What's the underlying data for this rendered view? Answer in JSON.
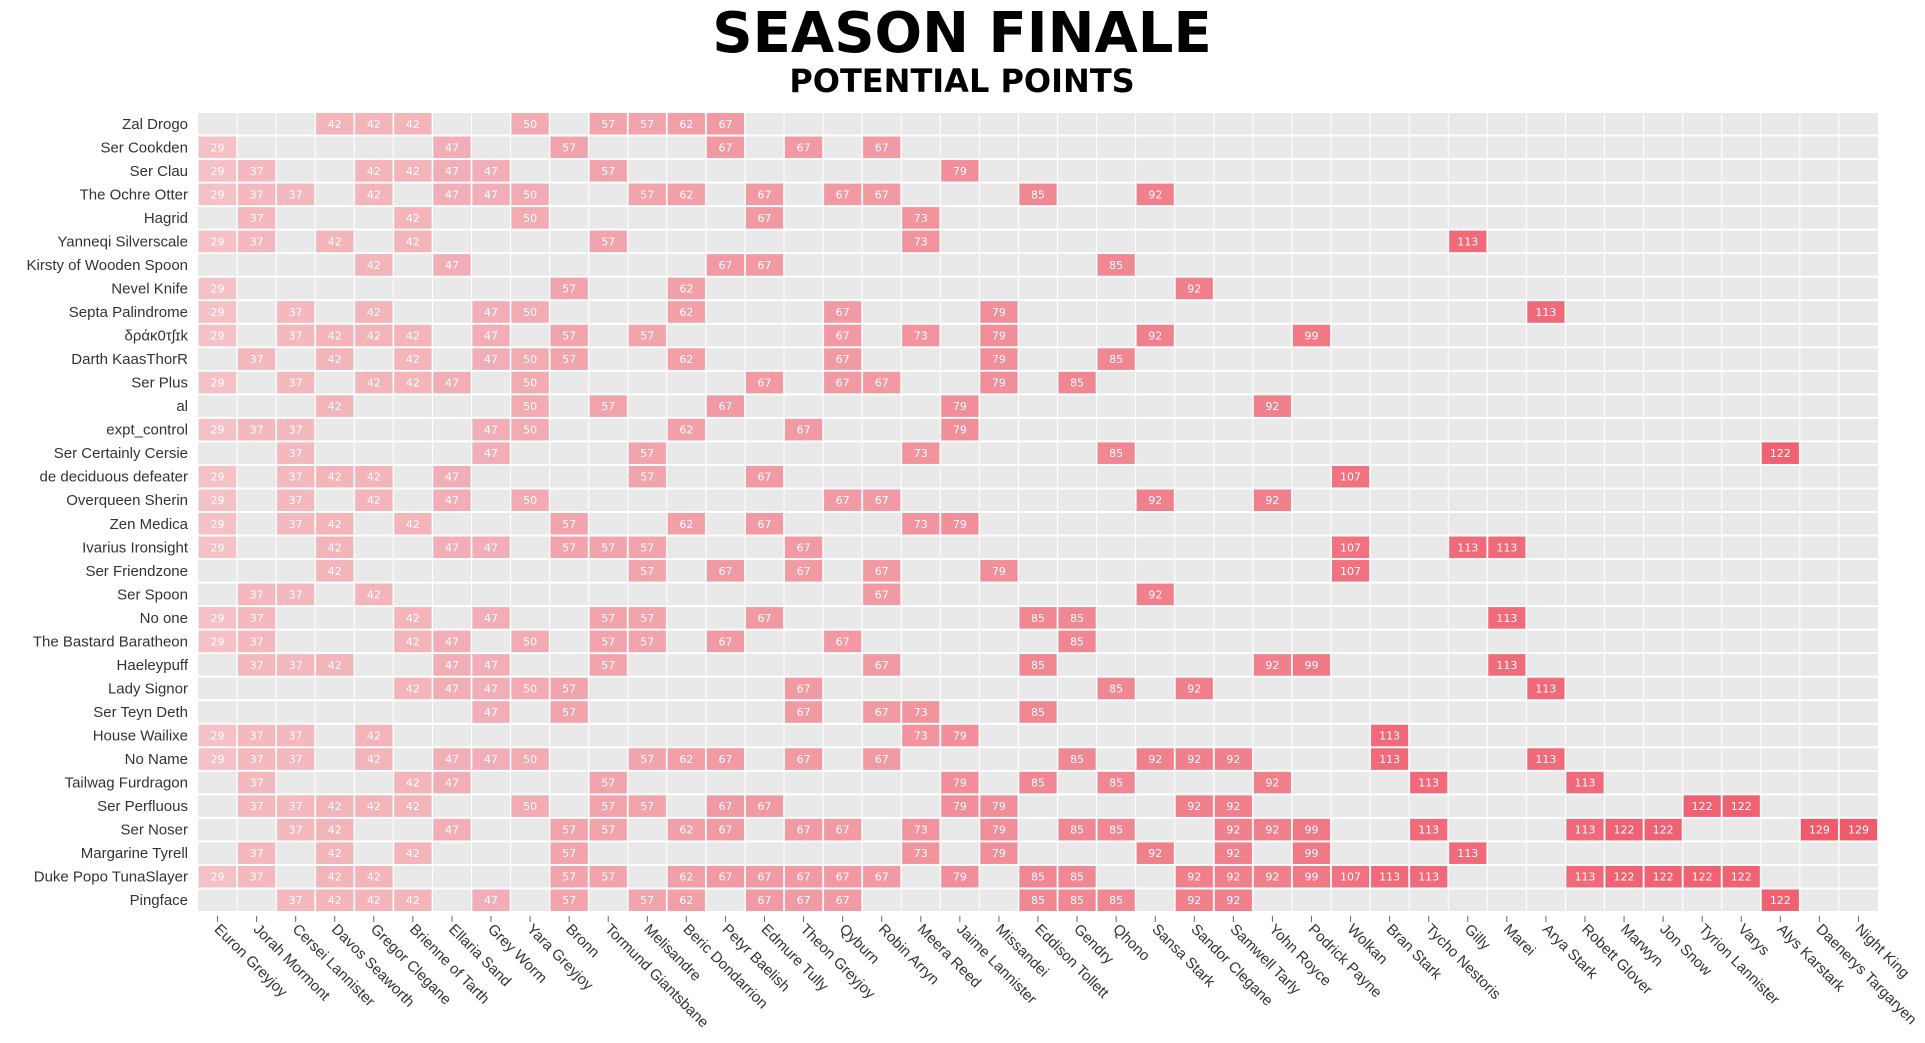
{
  "chart_data": {
    "type": "heatmap",
    "title": "SEASON FINALE",
    "subtitle": "POTENTIAL POINTS",
    "xlabel": "",
    "ylabel": "",
    "columns": [
      "Euron Greyjoy",
      "Jorah Mormont",
      "Cersei Lannister",
      "Davos Seaworth",
      "Gregor Clegane",
      "Brienne of Tarth",
      "Ellaria Sand",
      "Grey Worm",
      "Yara Greyjoy",
      "Bronn",
      "Tormund Giantsbane",
      "Melisandre",
      "Beric Dondarrion",
      "Petyr Baelish",
      "Edmure Tully",
      "Theon Greyjoy",
      "Qyburn",
      "Robin Arryn",
      "Meera Reed",
      "Jaime Lannister",
      "Missandei",
      "Eddison Tollett",
      "Gendry",
      "Qhono",
      "Sansa Stark",
      "Sandor Clegane",
      "Samwell Tarly",
      "Yohn Royce",
      "Podrick Payne",
      "Wolkan",
      "Bran Stark",
      "Tycho Nestoris",
      "Gilly",
      "Marei",
      "Arya Stark",
      "Robett Glover",
      "Marwyn",
      "Jon Snow",
      "Tyrion Lannister",
      "Varys",
      "Alys Karstark",
      "Daenerys Targaryen",
      "Night King"
    ],
    "column_points": [
      29,
      37,
      37,
      42,
      42,
      42,
      47,
      47,
      50,
      57,
      57,
      57,
      62,
      67,
      67,
      67,
      67,
      67,
      73,
      79,
      79,
      85,
      85,
      85,
      92,
      92,
      92,
      92,
      99,
      107,
      113,
      113,
      113,
      113,
      113,
      113,
      122,
      122,
      122,
      122,
      122,
      129,
      129
    ],
    "rows": [
      {
        "name": "Zal Drogo",
        "picks": [
          3,
          4,
          5,
          8,
          10,
          11,
          12,
          13
        ]
      },
      {
        "name": "Ser Cookden",
        "picks": [
          0,
          6,
          9,
          13,
          15,
          17
        ]
      },
      {
        "name": "Ser Clau",
        "picks": [
          0,
          1,
          4,
          5,
          6,
          7,
          10,
          19
        ]
      },
      {
        "name": "The Ochre Otter",
        "picks": [
          0,
          1,
          2,
          4,
          6,
          7,
          8,
          11,
          12,
          14,
          16,
          17,
          21,
          24
        ]
      },
      {
        "name": "Hagrid",
        "picks": [
          1,
          5,
          8,
          14,
          18
        ]
      },
      {
        "name": "Yanneqi Silverscale",
        "picks": [
          0,
          1,
          3,
          5,
          10,
          18,
          32
        ]
      },
      {
        "name": "Kirsty of Wooden Spoon",
        "picks": [
          4,
          6,
          13,
          14,
          23
        ]
      },
      {
        "name": "Nevel Knife",
        "picks": [
          0,
          9,
          12,
          25
        ]
      },
      {
        "name": "Septa Palindrome",
        "picks": [
          0,
          2,
          4,
          7,
          8,
          12,
          16,
          20,
          34
        ]
      },
      {
        "name": "δράκ0τʃɪk",
        "picks": [
          0,
          2,
          3,
          4,
          5,
          7,
          9,
          11,
          16,
          18,
          20,
          24,
          28
        ]
      },
      {
        "name": "Darth KaasThorR",
        "picks": [
          1,
          3,
          5,
          7,
          8,
          9,
          12,
          16,
          20,
          23
        ]
      },
      {
        "name": "Ser Plus",
        "picks": [
          0,
          2,
          4,
          5,
          6,
          8,
          14,
          16,
          17,
          20,
          22
        ]
      },
      {
        "name": "al",
        "picks": [
          3,
          8,
          10,
          13,
          19,
          27
        ]
      },
      {
        "name": "expt_control",
        "picks": [
          0,
          1,
          2,
          7,
          8,
          12,
          15,
          19
        ]
      },
      {
        "name": "Ser Certainly Cersie",
        "picks": [
          2,
          7,
          11,
          18,
          23,
          40
        ]
      },
      {
        "name": "de deciduous defeater",
        "picks": [
          0,
          2,
          3,
          4,
          6,
          11,
          14,
          29
        ]
      },
      {
        "name": "Overqueen Sherin",
        "picks": [
          0,
          2,
          4,
          6,
          8,
          16,
          17,
          24,
          27
        ]
      },
      {
        "name": "Zen Medica",
        "picks": [
          0,
          2,
          3,
          5,
          9,
          12,
          14,
          18,
          19
        ]
      },
      {
        "name": "Ivarius Ironsight",
        "picks": [
          0,
          3,
          6,
          7,
          9,
          10,
          11,
          15,
          29,
          32,
          33
        ]
      },
      {
        "name": "Ser Friendzone",
        "picks": [
          3,
          11,
          13,
          15,
          17,
          20,
          29
        ]
      },
      {
        "name": "Ser Spoon",
        "picks": [
          1,
          2,
          4,
          17,
          24
        ]
      },
      {
        "name": "No one",
        "picks": [
          0,
          1,
          5,
          7,
          10,
          11,
          14,
          21,
          22,
          33
        ]
      },
      {
        "name": "The Bastard Baratheon",
        "picks": [
          0,
          1,
          5,
          6,
          8,
          10,
          11,
          13,
          16,
          22
        ]
      },
      {
        "name": "Haeleypuff",
        "picks": [
          1,
          2,
          3,
          6,
          7,
          10,
          17,
          21,
          27,
          28,
          33
        ]
      },
      {
        "name": "Lady Signor",
        "picks": [
          5,
          6,
          7,
          8,
          9,
          15,
          23,
          25,
          34
        ]
      },
      {
        "name": "Ser Teyn Deth",
        "picks": [
          7,
          9,
          15,
          17,
          18,
          21
        ]
      },
      {
        "name": "House Wailixe",
        "picks": [
          0,
          1,
          2,
          4,
          18,
          19,
          30
        ]
      },
      {
        "name": "No Name",
        "picks": [
          0,
          1,
          2,
          4,
          6,
          7,
          8,
          11,
          12,
          13,
          15,
          17,
          22,
          24,
          25,
          26,
          30,
          34
        ]
      },
      {
        "name": "Tailwag Furdragon",
        "picks": [
          1,
          5,
          6,
          10,
          19,
          21,
          23,
          27,
          31,
          35
        ]
      },
      {
        "name": "Ser Perfluous",
        "picks": [
          1,
          2,
          3,
          4,
          5,
          8,
          10,
          11,
          13,
          14,
          19,
          20,
          25,
          26,
          38,
          39
        ]
      },
      {
        "name": "Ser Noser",
        "picks": [
          2,
          3,
          6,
          9,
          10,
          12,
          13,
          15,
          16,
          18,
          20,
          22,
          23,
          26,
          27,
          28,
          31,
          35,
          36,
          37,
          41,
          42
        ]
      },
      {
        "name": "Margarine Tyrell",
        "picks": [
          1,
          3,
          5,
          9,
          18,
          20,
          24,
          26,
          28,
          32
        ]
      },
      {
        "name": "Duke Popo TunaSlayer",
        "picks": [
          0,
          1,
          3,
          4,
          9,
          10,
          12,
          13,
          14,
          15,
          16,
          17,
          19,
          21,
          22,
          25,
          26,
          27,
          28,
          29,
          30,
          31,
          35,
          36,
          37,
          38,
          39
        ]
      },
      {
        "name": "Pingface",
        "picks": [
          2,
          3,
          4,
          5,
          7,
          9,
          11,
          12,
          14,
          15,
          16,
          21,
          22,
          23,
          25,
          26,
          40
        ]
      }
    ],
    "color_scale": {
      "low": "#f3c1c6",
      "high": "#f05a6b",
      "empty": "#e9e9e9"
    },
    "grid": true,
    "legend": "none"
  }
}
